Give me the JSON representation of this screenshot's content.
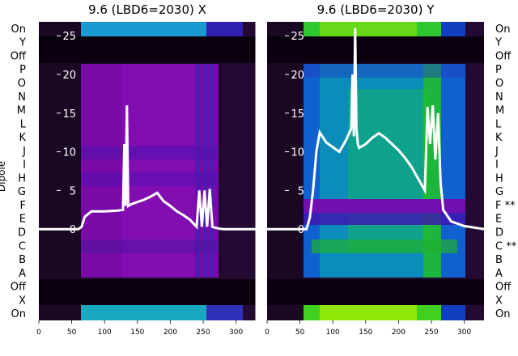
{
  "chart_data": [
    {
      "type": "heatmap",
      "title": "9.6 (LBD6=2030) X",
      "ylabel": "Dipole",
      "row_labels": [
        "On",
        "Y",
        "Off",
        "P",
        "O",
        "N",
        "M",
        "L",
        "K",
        "J",
        "I",
        "H",
        "G",
        "F",
        "E",
        "D",
        "C",
        "B",
        "A",
        "Off",
        "X",
        "On"
      ],
      "overlay": {
        "type": "line",
        "x_ticks": [
          0,
          50,
          100,
          150,
          200,
          250,
          300
        ],
        "xlim": [
          0,
          330
        ],
        "y_ticks": [
          0,
          5,
          10,
          15,
          20,
          25
        ],
        "ylim": [
          -11.8,
          26.8
        ],
        "series_envelope": {
          "x": [
            0,
            60,
            65,
            70,
            80,
            100,
            120,
            128,
            130,
            132,
            134,
            136,
            140,
            150,
            160,
            170,
            180,
            190,
            200,
            210,
            220,
            230,
            240,
            244,
            248,
            252,
            256,
            260,
            264,
            268,
            272,
            280,
            300,
            330
          ],
          "y": [
            0,
            0,
            0.3,
            1.6,
            2.3,
            2.3,
            2.4,
            2.5,
            11.0,
            3.0,
            16.0,
            3.0,
            3.2,
            3.5,
            3.8,
            4.2,
            4.7,
            3.6,
            3.0,
            2.3,
            1.8,
            1.2,
            0.3,
            5.0,
            0.3,
            5.0,
            0.3,
            5.2,
            0.3,
            0.2,
            0.1,
            0,
            0,
            0
          ]
        }
      }
    },
    {
      "type": "heatmap",
      "title": "9.6 (LBD6=2030) Y",
      "row_labels": [
        "On",
        "Y",
        "Off",
        "P",
        "O",
        "N",
        "M",
        "L",
        "K",
        "J",
        "I",
        "H",
        "G",
        "F **",
        "E",
        "D",
        "C **",
        "B",
        "A",
        "Off",
        "X",
        "On"
      ],
      "overlay": {
        "type": "line",
        "x_ticks": [
          0,
          50,
          100,
          150,
          200,
          250,
          300
        ],
        "xlim": [
          0,
          330
        ],
        "y_ticks": [
          0,
          5,
          10,
          15,
          20,
          25
        ],
        "ylim": [
          -11.8,
          26.8
        ],
        "series_envelope": {
          "x": [
            0,
            60,
            65,
            70,
            75,
            80,
            90,
            100,
            110,
            120,
            128,
            130,
            132,
            134,
            136,
            138,
            140,
            150,
            160,
            170,
            180,
            190,
            200,
            210,
            220,
            230,
            240,
            244,
            248,
            252,
            256,
            260,
            264,
            268,
            272,
            280,
            300,
            330
          ],
          "y": [
            0,
            0,
            1.5,
            5.0,
            10.0,
            12.5,
            11.2,
            10.6,
            10.0,
            11.5,
            13.0,
            20.0,
            12.0,
            26.0,
            13.0,
            11.0,
            10.5,
            11.0,
            11.8,
            12.4,
            11.8,
            11.0,
            10.2,
            9.2,
            8.0,
            6.5,
            5.0,
            15.8,
            11.0,
            16.0,
            9.0,
            15.0,
            6.0,
            2.5,
            2.0,
            1.0,
            0.4,
            0
          ]
        }
      }
    }
  ]
}
